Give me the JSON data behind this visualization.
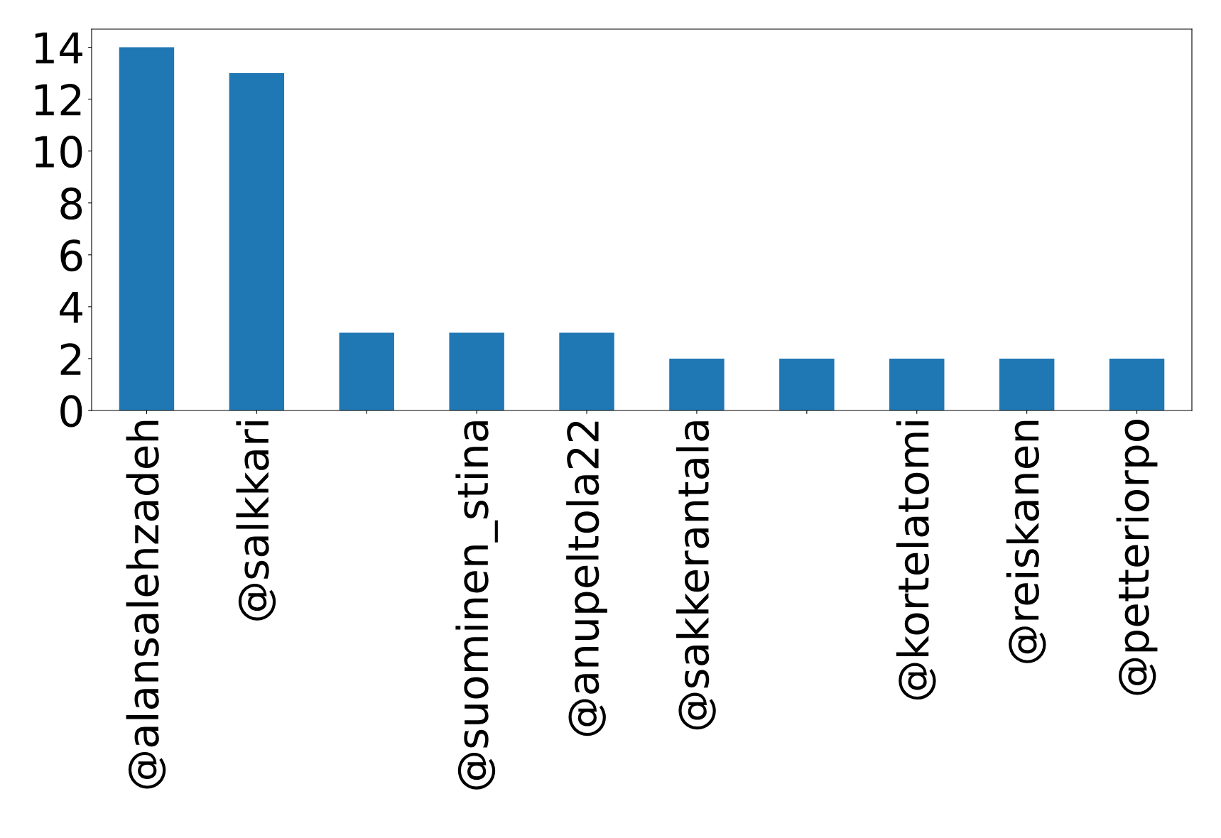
{
  "chart_data": {
    "type": "bar",
    "categories": [
      "@alansalehzadeh",
      "@salkkari",
      null,
      "@suominen_stina",
      "@anupeltola22",
      "@sakkerantala",
      null,
      "@kortelatomi",
      "@reiskanen",
      "@petteriorpo"
    ],
    "values": [
      14,
      13,
      3,
      3,
      3,
      2,
      2,
      2,
      2,
      2
    ],
    "color": "#1f77b4",
    "ylim": [
      0,
      14.7
    ],
    "yticks": [
      0,
      2,
      4,
      6,
      8,
      10,
      12,
      14
    ],
    "grid": false
  }
}
